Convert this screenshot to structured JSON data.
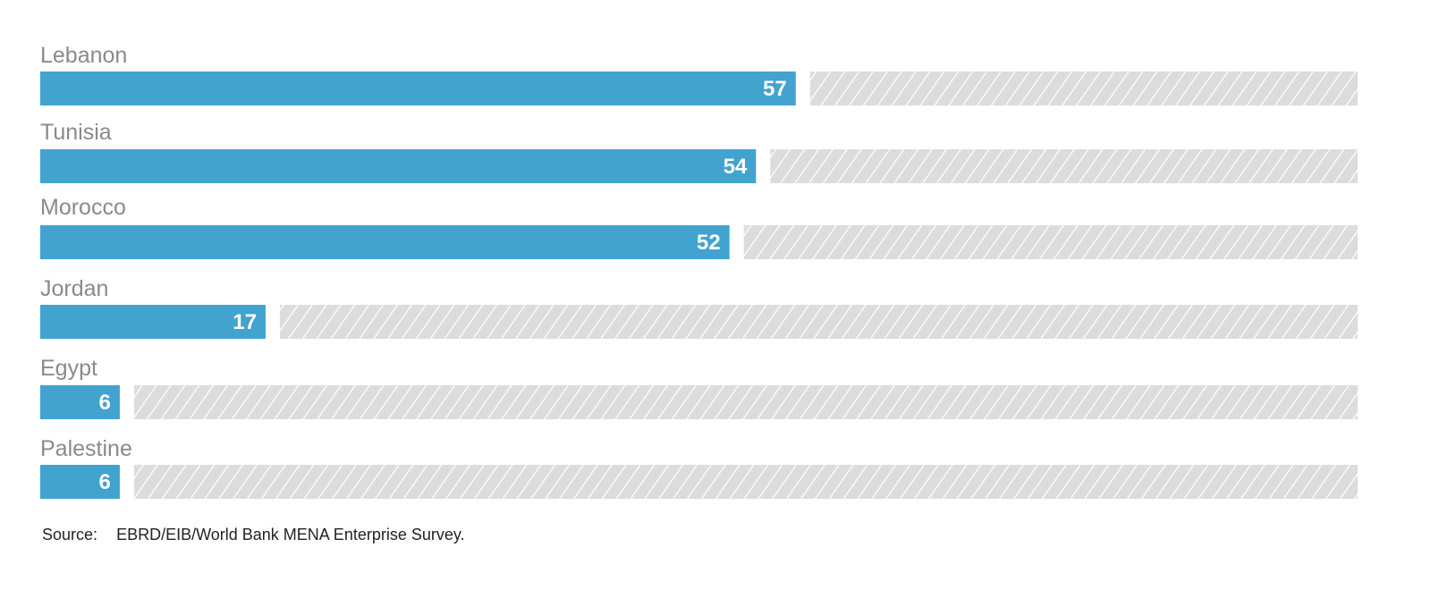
{
  "chart_data": {
    "type": "bar",
    "orientation": "horizontal",
    "categories": [
      "Lebanon",
      "Tunisia",
      "Morocco",
      "Jordan",
      "Egypt",
      "Palestine"
    ],
    "values": [
      57,
      54,
      52,
      17,
      6,
      6
    ],
    "xlim": [
      0,
      100
    ],
    "value_labels": [
      "57",
      "54",
      "52",
      "17",
      "6",
      "6"
    ],
    "grid": false,
    "legend": "none",
    "remainder_style": "hatched-grey"
  },
  "colors": {
    "bar": "#42a3cf",
    "remainder": "#dcdcdc",
    "hatch": "#ffffff",
    "category_text": "#8a8a8a",
    "value_text": "#ffffff"
  },
  "source": {
    "label": "Source:",
    "text": "EBRD/EIB/World Bank MENA Enterprise Survey."
  }
}
